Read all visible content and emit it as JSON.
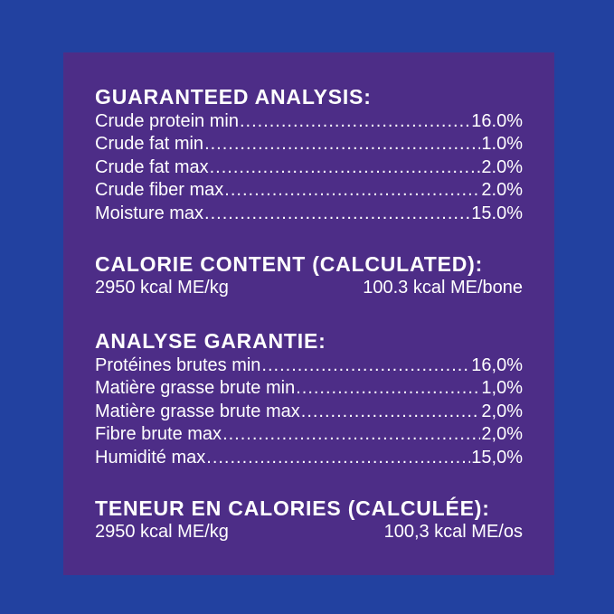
{
  "colors": {
    "page_background": "#2241A0",
    "panel_background": "#4D2D87",
    "text": "#FFFFFF"
  },
  "sections": {
    "guaranteed_analysis": {
      "heading": "GUARANTEED ANALYSIS:",
      "rows": [
        {
          "label": "Crude protein min",
          "value": "16.0%"
        },
        {
          "label": "Crude fat min",
          "value": "1.0%"
        },
        {
          "label": "Crude fat max",
          "value": "2.0%"
        },
        {
          "label": "Crude fiber max",
          "value": "2.0%"
        },
        {
          "label": "Moisture max",
          "value": "15.0%"
        }
      ]
    },
    "calorie_content": {
      "heading": "CALORIE CONTENT (CALCULATED):",
      "left_value": "2950 kcal ME/kg",
      "right_value": "100.3 kcal ME/bone"
    },
    "analyse_garantie": {
      "heading": "ANALYSE GARANTIE:",
      "rows": [
        {
          "label": "Protéines brutes min",
          "value": "16,0%"
        },
        {
          "label": "Matière grasse brute min",
          "value": "1,0%"
        },
        {
          "label": "Matière grasse brute max",
          "value": "2,0%"
        },
        {
          "label": "Fibre brute max",
          "value": "2,0%"
        },
        {
          "label": "Humidité max",
          "value": "15,0%"
        }
      ]
    },
    "teneur_en_calories": {
      "heading": "TENEUR EN CALORIES (CALCULÉE):",
      "left_value": "2950 kcal ME/kg",
      "right_value": "100,3 kcal ME/os"
    }
  }
}
